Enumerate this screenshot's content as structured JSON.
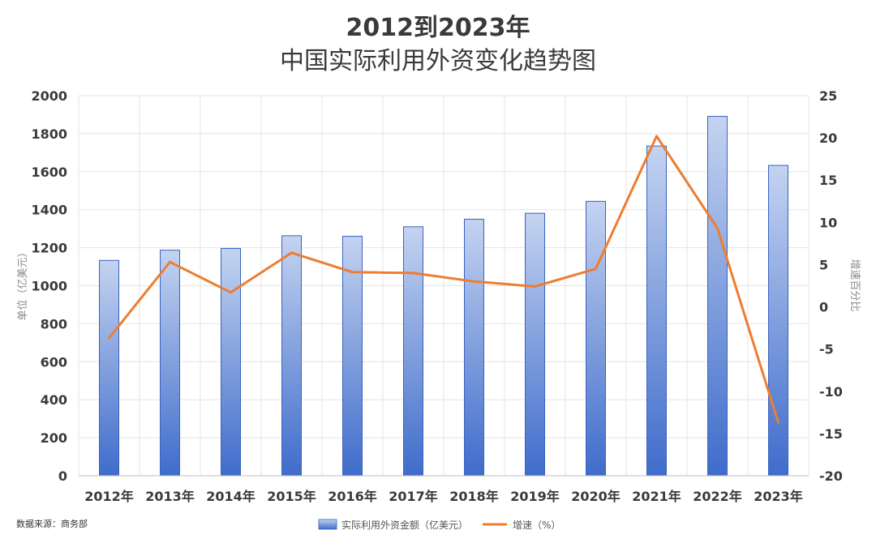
{
  "chart_data": {
    "type": "bar",
    "title_line1": "2012到2023年",
    "title_line2": "中国实际利用外资变化趋势图",
    "ylabel": "单位（亿美元）",
    "y2label": "增速百分比",
    "source": "数据来源：商务部",
    "categories": [
      "2012年",
      "2013年",
      "2014年",
      "2015年",
      "2016年",
      "2017年",
      "2018年",
      "2019年",
      "2020年",
      "2021年",
      "2022年",
      "2023年"
    ],
    "ylim": [
      0,
      2000
    ],
    "yticks": [
      0,
      200,
      400,
      600,
      800,
      1000,
      1200,
      1400,
      1600,
      1800,
      2000
    ],
    "y2lim": [
      -20,
      25
    ],
    "y2ticks": [
      -20,
      -15,
      -10,
      -5,
      0,
      5,
      10,
      15,
      20,
      25
    ],
    "grid": true,
    "legend_position": "bottom-center",
    "series": [
      {
        "name": "实际利用外资金额（亿美元）",
        "type": "bar",
        "axis": "left",
        "color": "#4472c4",
        "values": [
          1133,
          1187,
          1196,
          1263,
          1260,
          1310,
          1350,
          1381,
          1444,
          1735,
          1891,
          1633
        ]
      },
      {
        "name": "增速（%）",
        "type": "line",
        "axis": "right",
        "color": "#ed7d31",
        "values": [
          -3.7,
          5.3,
          1.7,
          6.4,
          4.1,
          4.0,
          3.0,
          2.4,
          4.5,
          20.2,
          9.3,
          -13.7
        ]
      }
    ]
  }
}
